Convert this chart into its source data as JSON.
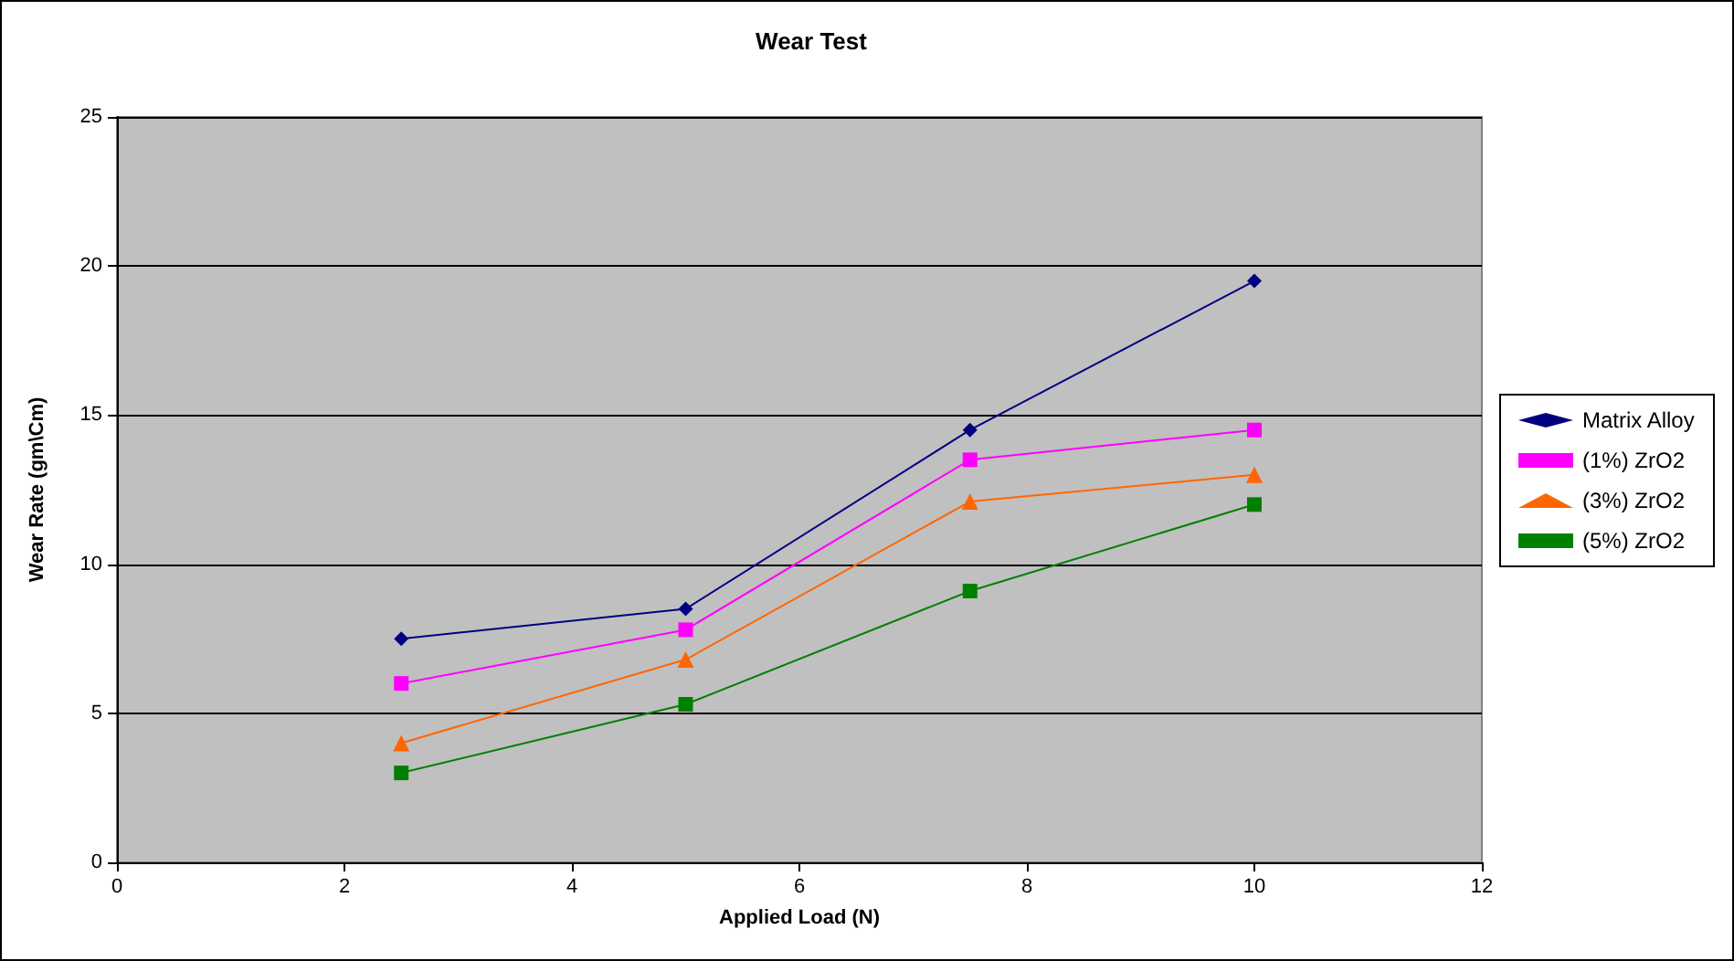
{
  "chart_data": {
    "type": "line",
    "title": "Wear Test",
    "xlabel": "Applied Load (N)",
    "ylabel": "Wear Rate (gm\\Cm)",
    "x": [
      2.5,
      5,
      7.5,
      10
    ],
    "series": [
      {
        "name": "Matrix Alloy",
        "color": "#000080",
        "marker": "diamond",
        "values": [
          7.5,
          8.5,
          14.5,
          19.5
        ]
      },
      {
        "name": "(1%) ZrO2",
        "color": "#ff00ff",
        "marker": "square",
        "values": [
          6,
          7.8,
          13.5,
          14.5
        ]
      },
      {
        "name": "(3%) ZrO2",
        "color": "#ff6600",
        "marker": "triangle",
        "values": [
          4,
          6.8,
          12.1,
          13
        ]
      },
      {
        "name": "(5%) ZrO2",
        "color": "#008000",
        "marker": "square",
        "values": [
          3,
          5.3,
          9.1,
          12
        ]
      }
    ],
    "xlim": [
      0,
      12
    ],
    "xticks": [
      0,
      2,
      4,
      6,
      8,
      10,
      12
    ],
    "ylim": [
      0,
      25
    ],
    "yticks": [
      0,
      5,
      10,
      15,
      20,
      25
    ],
    "grid": "y",
    "legend": "right",
    "line_style": "solid"
  }
}
